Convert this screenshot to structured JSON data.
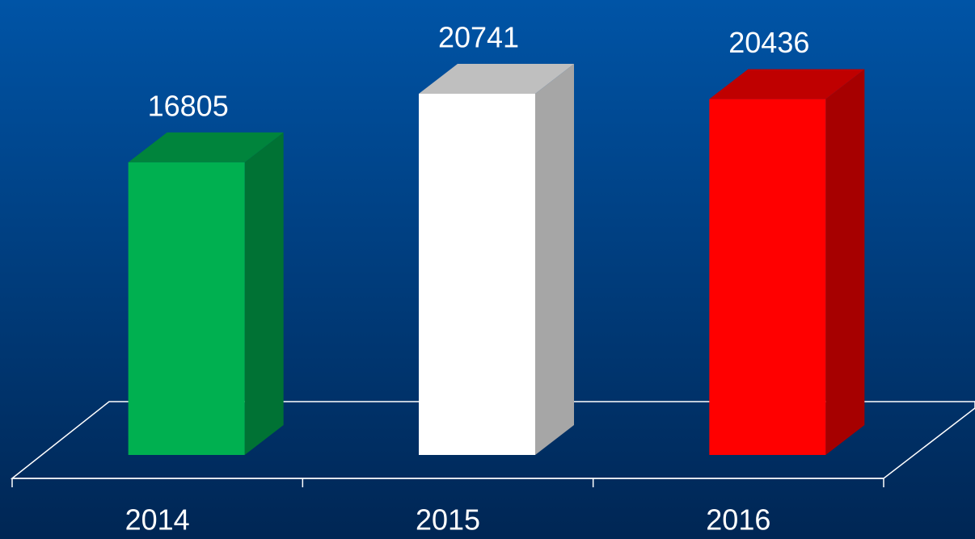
{
  "chart_data": {
    "type": "bar3d",
    "categories": [
      "2014",
      "2015",
      "2016"
    ],
    "values": [
      16805,
      20741,
      20436
    ],
    "colors": [
      "#00b050",
      "#ffffff",
      "#ff0000"
    ]
  }
}
